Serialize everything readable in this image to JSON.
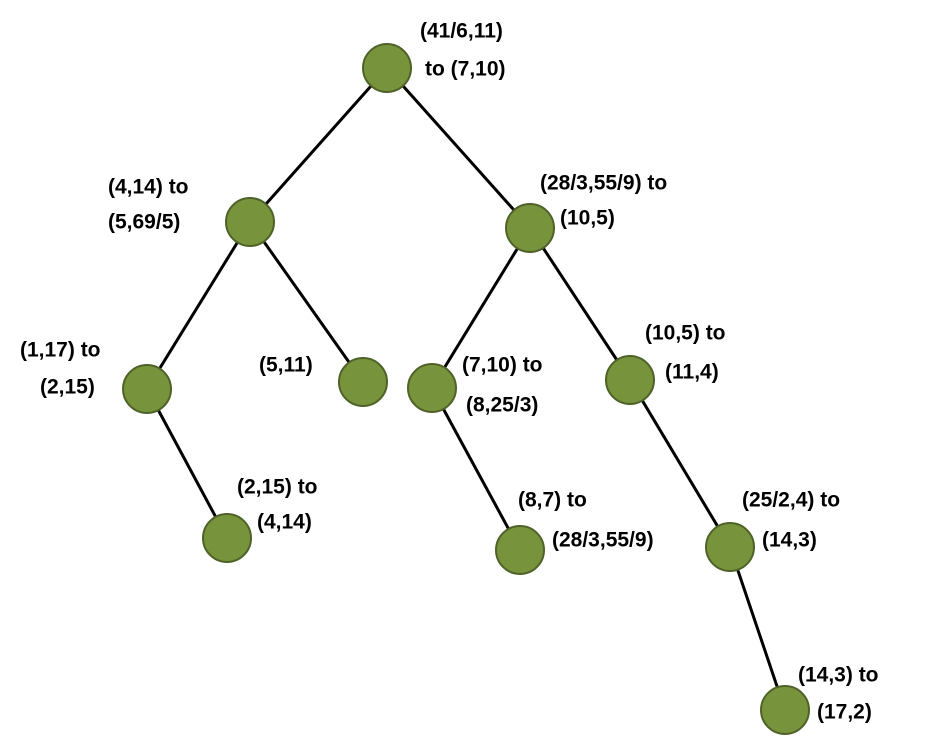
{
  "nodes": [
    {
      "lines": [
        "(41/6,11)",
        "to (7,10)"
      ]
    },
    {
      "lines": [
        "(4,14) to",
        "(5,69/5)"
      ]
    },
    {
      "lines": [
        "(28/3,55/9) to",
        "(10,5)"
      ]
    },
    {
      "lines": [
        "(1,17) to",
        "(2,15)"
      ]
    },
    {
      "lines": [
        "(5,11)"
      ]
    },
    {
      "lines": [
        "(7,10) to",
        "(8,25/3)"
      ]
    },
    {
      "lines": [
        "(10,5) to",
        "(11,4)"
      ]
    },
    {
      "lines": [
        "(2,15) to",
        "(4,14)"
      ]
    },
    {
      "lines": [
        "(8,7) to",
        "(28/3,55/9)"
      ]
    },
    {
      "lines": [
        "(25/2,4) to",
        "(14,3)"
      ]
    },
    {
      "lines": [
        "(14,3) to",
        "(17,2)"
      ]
    }
  ]
}
